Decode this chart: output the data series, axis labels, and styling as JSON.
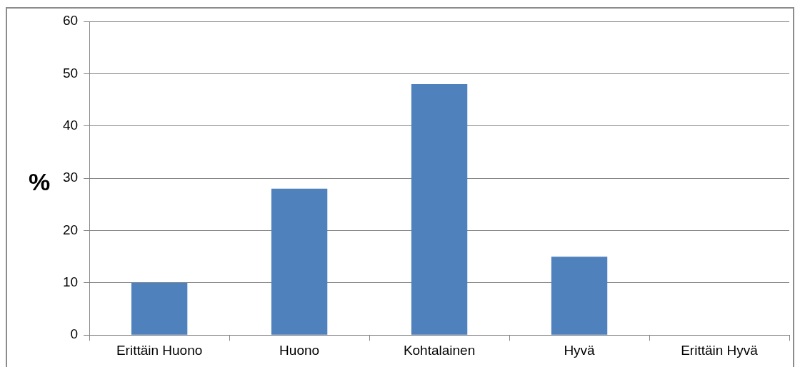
{
  "chart_data": {
    "type": "bar",
    "ylabel": "%",
    "categories": [
      "Erittäin Huono",
      "Huono",
      "Kohtalainen",
      "Hyvä",
      "Erittäin Hyvä"
    ],
    "values": [
      10,
      28,
      48,
      15,
      0
    ],
    "color": "#4f81bd",
    "ylim": [
      0,
      60
    ],
    "yticks": [
      0,
      10,
      20,
      30,
      40,
      50,
      60
    ],
    "grid": "y",
    "legend": false
  }
}
